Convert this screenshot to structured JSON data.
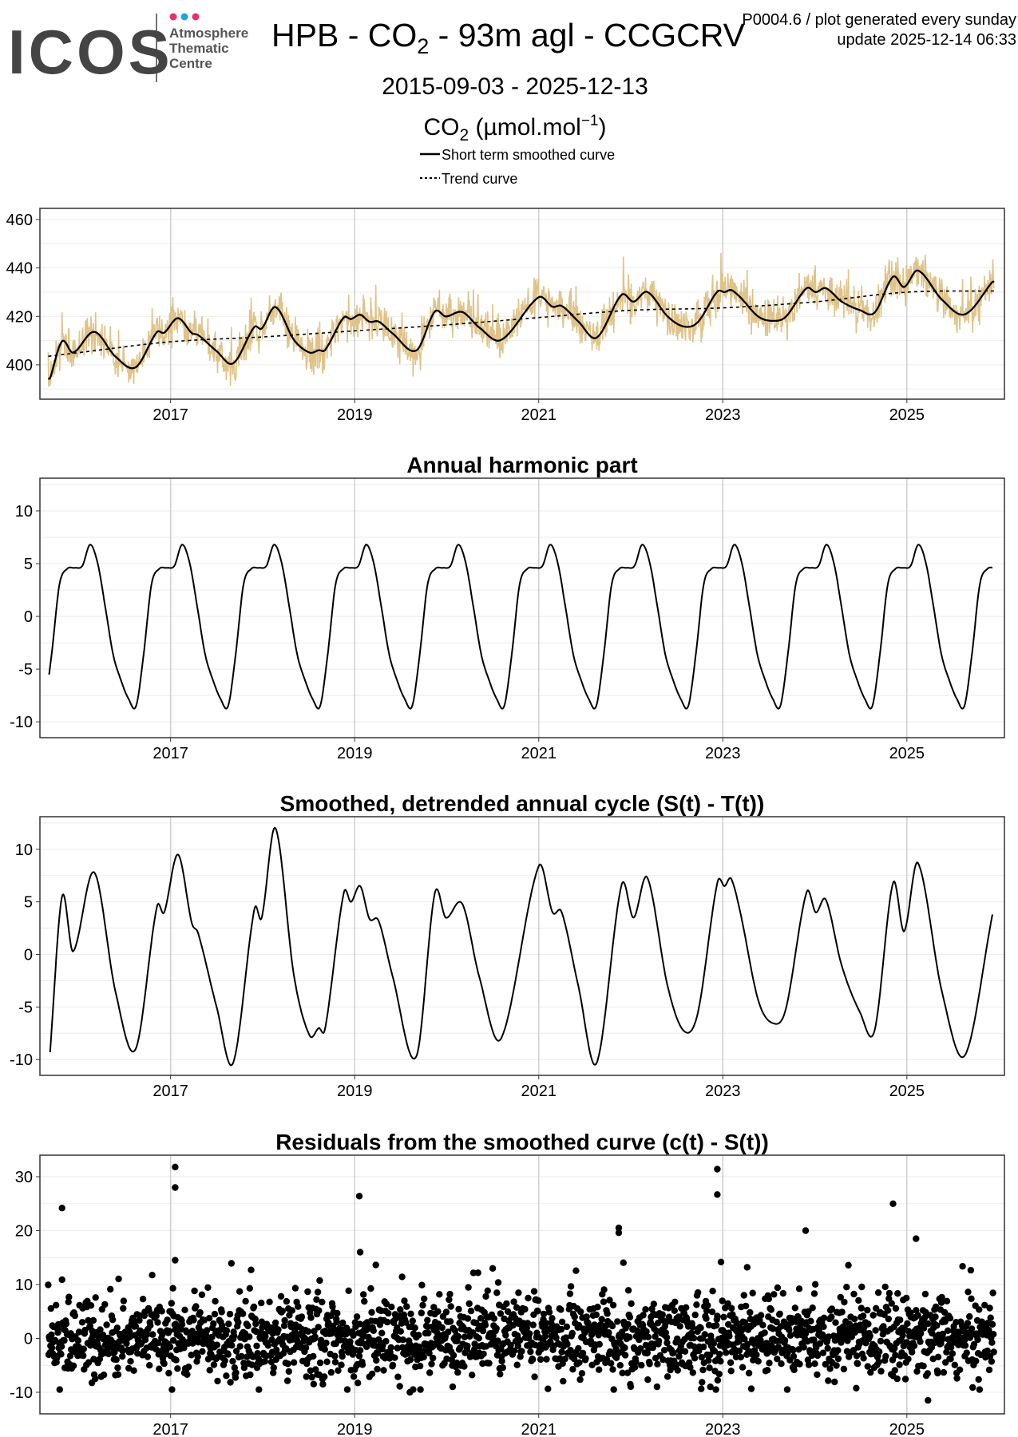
{
  "header": {
    "logo_text": "ICOS",
    "logo_sub": [
      "Atmosphere",
      "Thematic",
      "Centre"
    ],
    "title_prefix": "HPB - CO",
    "title_sub": "2",
    "title_suffix": " - 93m agl - CCGCRV",
    "plot_id": "P0004.6 / plot generated every sunday",
    "update": "update  2025-12-14 06:33",
    "date_range": "2015-09-03 - 2025-12-13",
    "unit_prefix": "CO",
    "unit_sub": "2",
    "unit_mid": " (µmol.mol",
    "unit_sup": "−1",
    "unit_end": ")",
    "legend": [
      {
        "label": "Short term smoothed curve",
        "style": "solid"
      },
      {
        "label": "Trend curve",
        "style": "dashed"
      }
    ]
  },
  "colors": {
    "raw": "#dfc389",
    "line": "#000000",
    "grid": "#ebebeb",
    "vgrid": "#cfcfcf",
    "border": "#333333",
    "dot_pink": "#e6306f",
    "dot_blue": "#1fa5e6",
    "logo": "#444444"
  },
  "chart_data": [
    {
      "id": "co2",
      "type": "line",
      "title": "",
      "ylim": [
        385.8,
        464.6
      ],
      "xlim": [
        2015.58,
        2026.06
      ],
      "yticks": [
        400,
        420,
        440,
        460
      ],
      "xticks": [
        "2017",
        "2019",
        "2021",
        "2023",
        "2025"
      ],
      "series": [
        "raw observations",
        "Short term smoothed curve",
        "Trend curve"
      ],
      "trend": [
        [
          2015.67,
          403.5
        ],
        [
          2016,
          405
        ],
        [
          2017,
          409.5
        ],
        [
          2018,
          411.5
        ],
        [
          2019,
          414
        ],
        [
          2020,
          416.5
        ],
        [
          2021,
          419.5
        ],
        [
          2022,
          422.5
        ],
        [
          2023,
          423.5
        ],
        [
          2024,
          426
        ],
        [
          2025,
          430
        ],
        [
          2025.95,
          430.5
        ]
      ]
    },
    {
      "id": "harmonic",
      "type": "line",
      "title": "Annual harmonic part",
      "ylim": [
        -11.5,
        13.1
      ],
      "xlim": [
        2015.58,
        2026.06
      ],
      "yticks": [
        -10,
        -5,
        0,
        5,
        10
      ],
      "xticks": [
        "2017",
        "2019",
        "2021",
        "2023",
        "2025"
      ],
      "monthly_values": [
        4.8,
        6.8,
        5.0,
        0.8,
        -3.6,
        -6.0,
        -7.8,
        -8.5,
        -3.5,
        3.0,
        4.5,
        4.6
      ]
    },
    {
      "id": "detrended",
      "type": "line",
      "title": "Smoothed, detrended annual cycle (S(t) - T(t))",
      "ylim": [
        -11.5,
        13.1
      ],
      "xlim": [
        2015.58,
        2026.06
      ],
      "yticks": [
        -10,
        -5,
        0,
        5,
        10
      ],
      "xticks": [
        "2017",
        "2019",
        "2021",
        "2023",
        "2025"
      ],
      "points": [
        [
          2015.69,
          -9.3
        ],
        [
          2015.82,
          5.5
        ],
        [
          2015.94,
          0.3
        ],
        [
          2016.17,
          7.8
        ],
        [
          2016.4,
          -3.5
        ],
        [
          2016.62,
          -9
        ],
        [
          2016.85,
          4.5
        ],
        [
          2016.93,
          4
        ],
        [
          2017.08,
          9.5
        ],
        [
          2017.23,
          3
        ],
        [
          2017.3,
          2
        ],
        [
          2017.5,
          -5
        ],
        [
          2017.68,
          -10.3
        ],
        [
          2017.91,
          4.3
        ],
        [
          2017.99,
          3.5
        ],
        [
          2018.14,
          12
        ],
        [
          2018.34,
          -2
        ],
        [
          2018.51,
          -7.7
        ],
        [
          2018.61,
          -7
        ],
        [
          2018.68,
          -7
        ],
        [
          2018.88,
          5.8
        ],
        [
          2018.96,
          5
        ],
        [
          2019.06,
          6.5
        ],
        [
          2019.16,
          3.4
        ],
        [
          2019.26,
          3.2
        ],
        [
          2019.41,
          -2
        ],
        [
          2019.67,
          -9.7
        ],
        [
          2019.87,
          5.8
        ],
        [
          2019.99,
          3.5
        ],
        [
          2020.17,
          4.8
        ],
        [
          2020.35,
          -2
        ],
        [
          2020.59,
          -8
        ],
        [
          2021.0,
          8.4
        ],
        [
          2021.15,
          4
        ],
        [
          2021.25,
          4
        ],
        [
          2021.43,
          -3
        ],
        [
          2021.63,
          -10.3
        ],
        [
          2021.9,
          6.6
        ],
        [
          2022.03,
          3.5
        ],
        [
          2022.18,
          7.3
        ],
        [
          2022.4,
          -3
        ],
        [
          2022.58,
          -7.3
        ],
        [
          2022.73,
          -5.5
        ],
        [
          2022.94,
          6.8
        ],
        [
          2023.02,
          6.5
        ],
        [
          2023.09,
          7.2
        ],
        [
          2023.19,
          4
        ],
        [
          2023.39,
          -4.5
        ],
        [
          2023.57,
          -6.6
        ],
        [
          2023.69,
          -5
        ],
        [
          2023.91,
          5.9
        ],
        [
          2024.01,
          4
        ],
        [
          2024.12,
          5.2
        ],
        [
          2024.29,
          -1
        ],
        [
          2024.49,
          -5.5
        ],
        [
          2024.65,
          -7.2
        ],
        [
          2024.85,
          6.8
        ],
        [
          2024.97,
          2.2
        ],
        [
          2025.12,
          8.7
        ],
        [
          2025.38,
          -3.5
        ],
        [
          2025.63,
          -9.6
        ],
        [
          2025.93,
          3.8
        ]
      ]
    },
    {
      "id": "residuals",
      "type": "scatter",
      "title": "Residuals from the smoothed curve (c(t) - S(t))",
      "ylim": [
        -14,
        34
      ],
      "xlim": [
        2015.58,
        2026.06
      ],
      "yticks": [
        -10,
        0,
        10,
        20,
        30
      ],
      "xticks": [
        "2017",
        "2019",
        "2021",
        "2023",
        "2025"
      ],
      "sampling": {
        "start": 2015.67,
        "end": 2025.95,
        "per_year": 200,
        "sd": 3.6,
        "seed": 7
      },
      "outliers": [
        [
          2015.82,
          24.2
        ],
        [
          2017.05,
          31.8
        ],
        [
          2017.05,
          28
        ],
        [
          2017.05,
          14.5
        ],
        [
          2019.05,
          26.4
        ],
        [
          2022.94,
          31.4
        ],
        [
          2022.94,
          26.7
        ],
        [
          2024.85,
          25
        ],
        [
          2025.1,
          18.5
        ],
        [
          2021.87,
          20.5
        ],
        [
          2021.87,
          19.6
        ],
        [
          2023.9,
          20
        ],
        [
          2025.23,
          -11.5
        ],
        [
          2019.6,
          -10
        ],
        [
          2019.06,
          16
        ]
      ]
    }
  ]
}
